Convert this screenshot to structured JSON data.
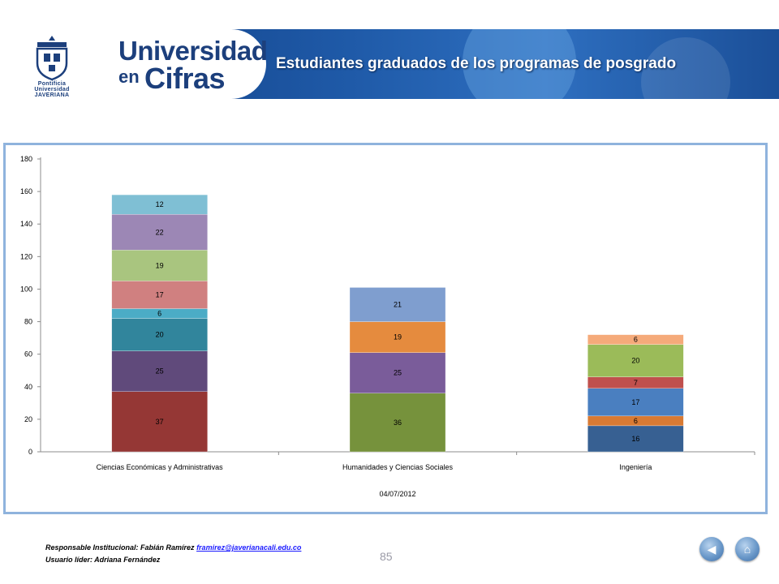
{
  "header": {
    "crest_text": "Pontificia Universidad JAVERIANA",
    "brand_line1": "Universidad",
    "brand_en": "en",
    "brand_cifras": "Cifras",
    "title": "Estudiantes graduados de los programas de posgrado"
  },
  "chart_data": {
    "type": "bar",
    "stacked": true,
    "categories": [
      "Ciencias Económicas y Administrativas",
      "Humanidades y Ciencias Sociales",
      "Ingeniería"
    ],
    "xlabel": "04/07/2012",
    "ylim": [
      0,
      180
    ],
    "yticks": [
      0,
      20,
      40,
      60,
      80,
      100,
      120,
      140,
      160,
      180
    ],
    "grid": false,
    "stacks": [
      [
        {
          "value": 37,
          "color": "#953735"
        },
        {
          "value": 25,
          "color": "#604a7b"
        },
        {
          "value": 20,
          "color": "#31859c"
        },
        {
          "value": 6,
          "color": "#4bacc6"
        },
        {
          "value": 17,
          "color": "#d08080"
        },
        {
          "value": 19,
          "color": "#a9c57f"
        },
        {
          "value": 22,
          "color": "#9c87b5"
        },
        {
          "value": 12,
          "color": "#7fbfd4"
        }
      ],
      [
        {
          "value": 36,
          "color": "#76923c"
        },
        {
          "value": 25,
          "color": "#7a5c9a"
        },
        {
          "value": 19,
          "color": "#e58b3e"
        },
        {
          "value": 21,
          "color": "#7f9ecf"
        }
      ],
      [
        {
          "value": 16,
          "color": "#376092"
        },
        {
          "value": 6,
          "color": "#d87a33"
        },
        {
          "value": 17,
          "color": "#4a7fc0"
        },
        {
          "value": 7,
          "color": "#c0504d"
        },
        {
          "value": 20,
          "color": "#9bbb59"
        },
        {
          "value": 6,
          "color": "#f5aa7a"
        }
      ]
    ]
  },
  "footer": {
    "responsable_label": "Responsable Institucional: Fabián Ramírez",
    "email": "framirez@javerianacali.edu.co",
    "usuario_label": "Usuario líder: Adriana Fernández",
    "page_number": "85",
    "back_icon": "back-arrow-icon",
    "home_icon": "home-icon"
  }
}
